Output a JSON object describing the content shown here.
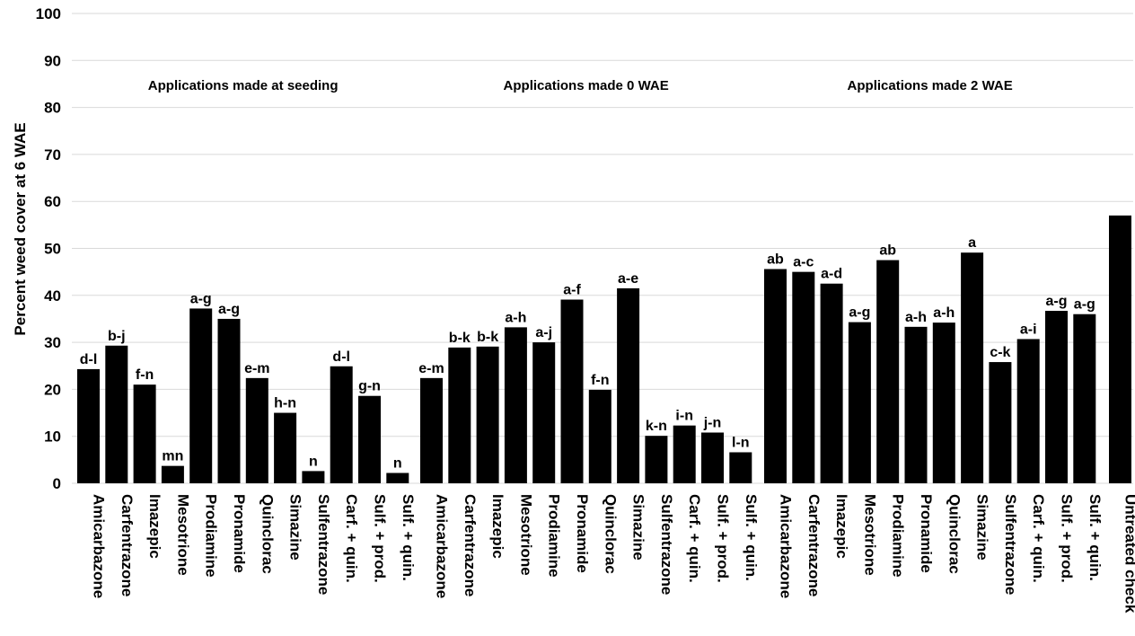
{
  "chart_data": {
    "type": "bar",
    "ylabel": "Percent weed cover at 6 WAE",
    "ylim": [
      0,
      100
    ],
    "yticks": [
      0,
      10,
      20,
      30,
      40,
      50,
      60,
      70,
      80,
      90,
      100
    ],
    "grid": true,
    "bar_color": "#000000",
    "grid_color": "#d9d9d9",
    "groups": [
      {
        "title": "Applications  made at seeding",
        "bars": [
          {
            "category": "Amicarbazone",
            "value": 24.3,
            "label": "d-l"
          },
          {
            "category": "Carfentrazone",
            "value": 29.3,
            "label": "b-j"
          },
          {
            "category": "Imazepic",
            "value": 21.0,
            "label": "f-n"
          },
          {
            "category": "Mesotrione",
            "value": 3.7,
            "label": "mn"
          },
          {
            "category": "Prodiamine",
            "value": 37.2,
            "label": "a-g"
          },
          {
            "category": "Pronamide",
            "value": 35.0,
            "label": "a-g"
          },
          {
            "category": "Quinclorac",
            "value": 22.4,
            "label": "e-m"
          },
          {
            "category": "Simazine",
            "value": 15.0,
            "label": "h-n"
          },
          {
            "category": "Sulfentrazone",
            "value": 2.6,
            "label": "n"
          },
          {
            "category": "Carf. + quin.",
            "value": 24.9,
            "label": "d-l"
          },
          {
            "category": "Sulf. + prod.",
            "value": 18.6,
            "label": "g-n"
          },
          {
            "category": "Sulf. + quin.",
            "value": 2.2,
            "label": "n"
          }
        ]
      },
      {
        "title": "Applications  made 0 WAE",
        "bars": [
          {
            "category": "Amicarbazone",
            "value": 22.4,
            "label": "e-m"
          },
          {
            "category": "Carfentrazone",
            "value": 28.9,
            "label": "b-k"
          },
          {
            "category": "Imazepic",
            "value": 29.1,
            "label": "b-k"
          },
          {
            "category": "Mesotrione",
            "value": 33.2,
            "label": "a-h"
          },
          {
            "category": "Prodiamine",
            "value": 30.0,
            "label": "a-j"
          },
          {
            "category": "Pronamide",
            "value": 39.1,
            "label": "a-f"
          },
          {
            "category": "Quinclorac",
            "value": 19.9,
            "label": "f-n"
          },
          {
            "category": "Simazine",
            "value": 41.5,
            "label": "a-e"
          },
          {
            "category": "Sulfentrazone",
            "value": 10.1,
            "label": "k-n"
          },
          {
            "category": "Carf. + quin.",
            "value": 12.3,
            "label": "i-n"
          },
          {
            "category": "Sulf. + prod.",
            "value": 10.8,
            "label": "j-n"
          },
          {
            "category": "Sulf. + quin.",
            "value": 6.6,
            "label": "l-n"
          }
        ]
      },
      {
        "title": "Applications  made 2 WAE",
        "bars": [
          {
            "category": "Amicarbazone",
            "value": 45.6,
            "label": "ab"
          },
          {
            "category": "Carfentrazone",
            "value": 45.0,
            "label": "a-c"
          },
          {
            "category": "Imazepic",
            "value": 42.5,
            "label": "a-d"
          },
          {
            "category": "Mesotrione",
            "value": 34.3,
            "label": "a-g"
          },
          {
            "category": "Prodiamine",
            "value": 47.5,
            "label": "ab"
          },
          {
            "category": "Pronamide",
            "value": 33.3,
            "label": "a-h"
          },
          {
            "category": "Quinclorac",
            "value": 34.2,
            "label": "a-h"
          },
          {
            "category": "Simazine",
            "value": 49.1,
            "label": "a"
          },
          {
            "category": "Sulfentrazone",
            "value": 25.8,
            "label": "c-k"
          },
          {
            "category": "Carf. + quin.",
            "value": 30.7,
            "label": "a-i"
          },
          {
            "category": "Sulf. + prod.",
            "value": 36.7,
            "label": "a-g"
          },
          {
            "category": "Sulf. + quin.",
            "value": 36.0,
            "label": "a-g"
          }
        ]
      },
      {
        "title": "",
        "bars": [
          {
            "category": "Untreated check",
            "value": 57.0,
            "label": ""
          }
        ]
      }
    ]
  }
}
